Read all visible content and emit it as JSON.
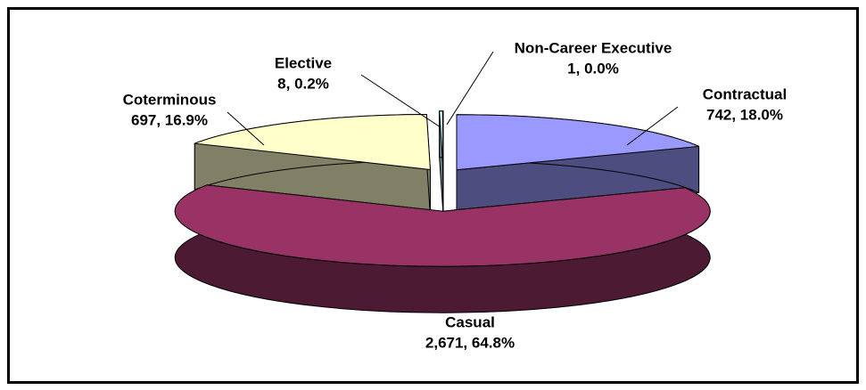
{
  "chart_data": {
    "type": "pie3d",
    "categories": [
      "Contractual",
      "Casual",
      "Coterminous",
      "Elective",
      "Non-Career Executive"
    ],
    "values": [
      742,
      2671,
      697,
      8,
      1
    ],
    "value_labels": [
      "742, 18.0%",
      "2,671, 64.8%",
      "697, 16.9%",
      "8, 0.2%",
      "1, 0.0%"
    ],
    "colors": [
      "#9999ff",
      "#993366",
      "#ffffcc",
      "#ccffff",
      "#660066"
    ],
    "side_colors": [
      "#4d4d80",
      "#4d1a33",
      "#808066",
      "#668080",
      "#330033"
    ]
  }
}
